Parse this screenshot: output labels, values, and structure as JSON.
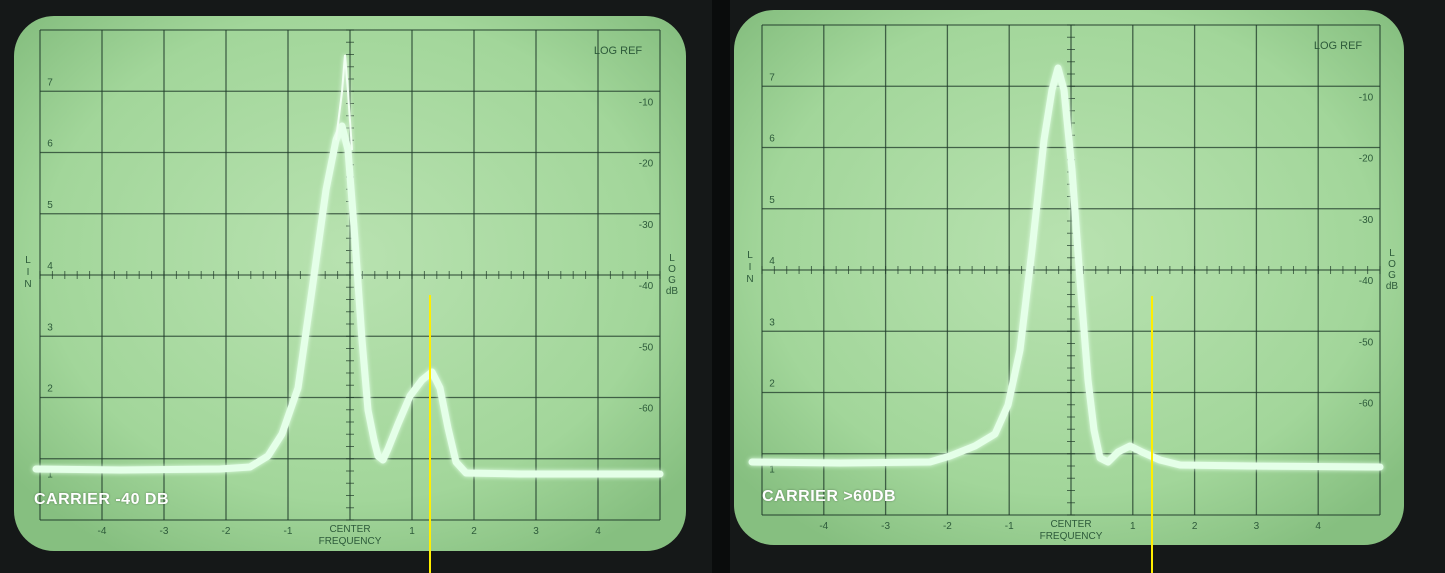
{
  "panels": [
    {
      "caption": "CARRIER -40 DB",
      "top_right_label": "LOG REF",
      "left_axis_letters": [
        "L",
        "I",
        "N"
      ],
      "right_axis_letters": [
        "L",
        "O",
        "G",
        "dB"
      ],
      "left_scale": [
        "7",
        "6",
        "5",
        "4",
        "3",
        "2",
        "1"
      ],
      "right_scale": [
        "-10",
        "-20",
        "-30",
        "-40",
        "-50",
        "-60"
      ],
      "bottom_scale": [
        "-4",
        "-3",
        "-2",
        "-1",
        "1",
        "2",
        "3",
        "4"
      ],
      "center_label_1": "CENTER",
      "center_label_2": "FREQUENCY"
    },
    {
      "caption": "CARRIER >60DB",
      "top_right_label": "LOG REF",
      "left_axis_letters": [
        "L",
        "I",
        "N"
      ],
      "right_axis_letters": [
        "L",
        "O",
        "G",
        "dB"
      ],
      "left_scale": [
        "7",
        "6",
        "5",
        "4",
        "3",
        "2",
        "1"
      ],
      "right_scale": [
        "-10",
        "-20",
        "-30",
        "-40",
        "-50",
        "-60"
      ],
      "bottom_scale": [
        "-4",
        "-3",
        "-2",
        "-1",
        "1",
        "2",
        "3",
        "4"
      ],
      "center_label_1": "CENTER",
      "center_label_2": "FREQUENCY"
    }
  ],
  "colors": {
    "screen": "#a8d7a0",
    "grid": "#1f3a2a",
    "trace": "#d9ffe0",
    "marker": "#ffee00",
    "caption": "#ffffff"
  }
}
